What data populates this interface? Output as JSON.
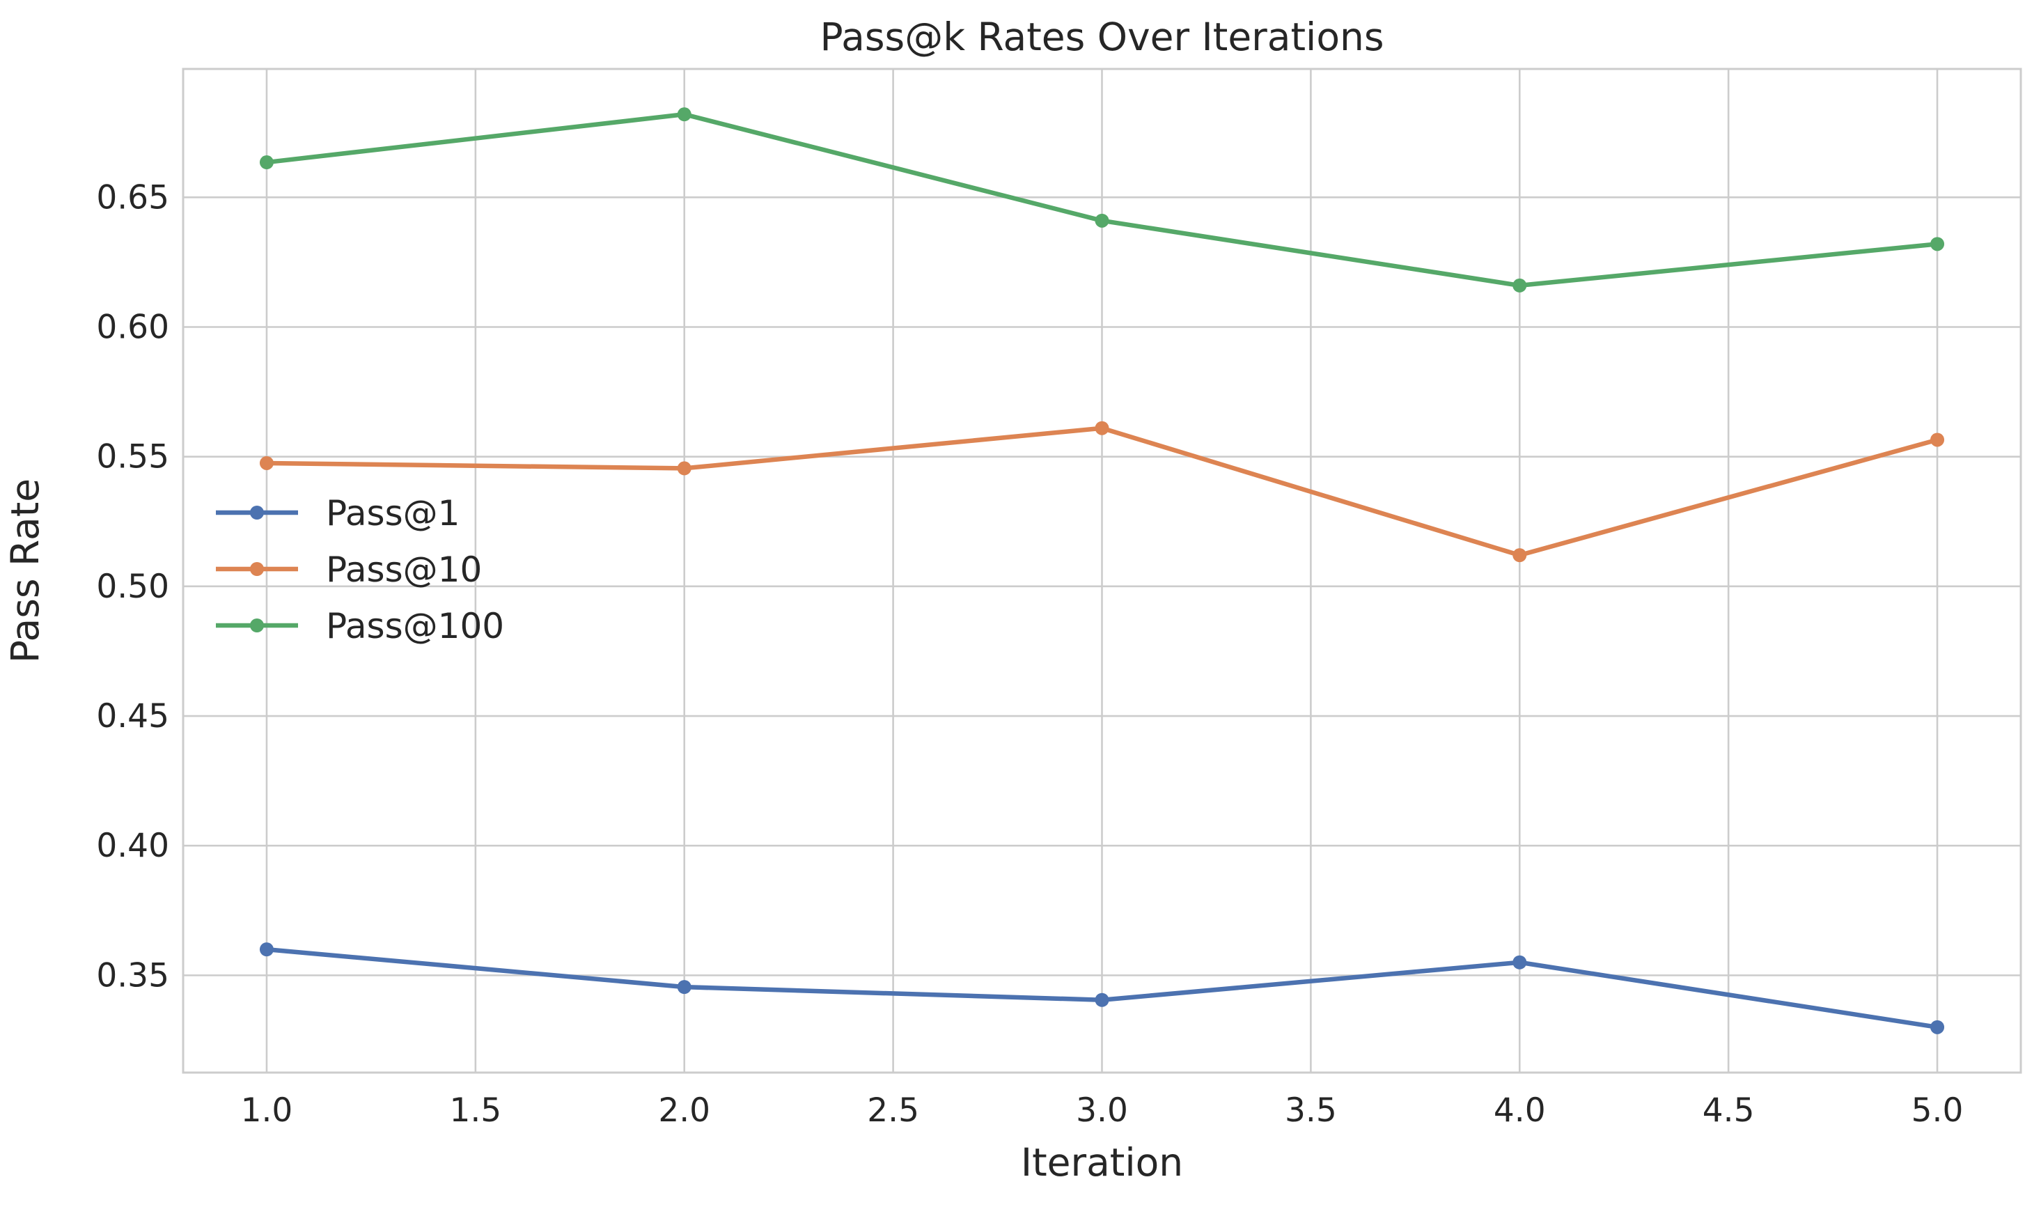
{
  "chart_data": {
    "type": "line",
    "title": "Pass@k Rates Over Iterations",
    "xlabel": "Iteration",
    "ylabel": "Pass Rate",
    "x": [
      1,
      2,
      3,
      4,
      5
    ],
    "xlim": [
      0.8,
      5.2
    ],
    "ylim": [
      0.3125,
      0.6995
    ],
    "xticks": [
      "1.0",
      "1.5",
      "2.0",
      "2.5",
      "3.0",
      "3.5",
      "4.0",
      "4.5",
      "5.0"
    ],
    "yticks": [
      "0.35",
      "0.40",
      "0.45",
      "0.50",
      "0.55",
      "0.60",
      "0.65"
    ],
    "grid": true,
    "legend_position": "center-left",
    "series": [
      {
        "name": "Pass@1",
        "color": "#4c72b0",
        "values": [
          0.36,
          0.3455,
          0.3405,
          0.355,
          0.33
        ]
      },
      {
        "name": "Pass@10",
        "color": "#dd8452",
        "values": [
          0.5475,
          0.5455,
          0.561,
          0.512,
          0.5565
        ]
      },
      {
        "name": "Pass@100",
        "color": "#55a868",
        "values": [
          0.6635,
          0.682,
          0.641,
          0.616,
          0.632
        ]
      }
    ]
  }
}
